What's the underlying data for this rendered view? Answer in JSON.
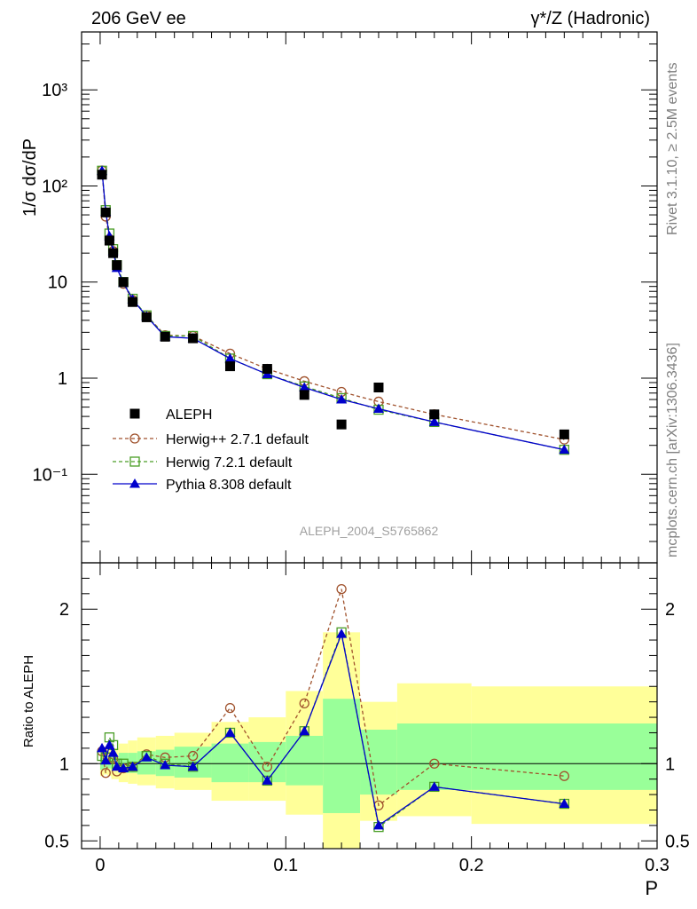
{
  "header": {
    "left": "206 GeV ee",
    "right": "γ*/Z (Hadronic)"
  },
  "side_labels": {
    "rivet": "Rivet 3.1.10, ≥ 2.5M events",
    "mcplots": "mcplots.cern.ch [arXiv:1306.3436]"
  },
  "analysis_label": "ALEPH_2004_S5765862",
  "colors": {
    "data": "#000000",
    "herwigpp": "#a0522d",
    "herwig7": "#4a9e26",
    "pythia": "#0000cc",
    "band_inner": "#99ff99",
    "band_outer": "#ffff99"
  },
  "chart_data": [
    {
      "type": "scatter",
      "panel": "main",
      "ylabel": "1/σ  dσ/dP",
      "yscale": "log",
      "xlim": [
        -0.01,
        0.3
      ],
      "ylim": [
        0.012,
        4000
      ],
      "y_tick_labels": [
        "10⁻¹",
        "1",
        "10",
        "10²",
        "10³"
      ],
      "legend_position": "lower-left",
      "x": [
        0.001,
        0.003,
        0.005,
        0.007,
        0.009,
        0.0125,
        0.0175,
        0.025,
        0.035,
        0.05,
        0.07,
        0.09,
        0.11,
        0.13,
        0.15,
        0.18,
        0.25
      ],
      "bin_edges": [
        0,
        0.002,
        0.004,
        0.006,
        0.008,
        0.01,
        0.015,
        0.02,
        0.03,
        0.04,
        0.06,
        0.08,
        0.1,
        0.12,
        0.14,
        0.16,
        0.2,
        0.3
      ],
      "series": [
        {
          "name": "ALEPH",
          "style": "data",
          "values": [
            131,
            53,
            27,
            20,
            15,
            10,
            6.2,
            4.3,
            2.7,
            2.6,
            1.33,
            1.25,
            0.67,
            0.33,
            0.8,
            0.42,
            0.26
          ]
        },
        {
          "name": "Herwig++ 2.7.1 default",
          "style": "herwigpp",
          "values": [
            145,
            48,
            28,
            21,
            15,
            9.6,
            6.5,
            4.5,
            2.8,
            2.75,
            1.8,
            1.25,
            0.93,
            0.72,
            0.57,
            0.42,
            0.23
          ]
        },
        {
          "name": "Herwig 7.2.1 default",
          "style": "herwig7",
          "values": [
            144,
            56,
            32,
            22,
            15,
            10,
            6.7,
            4.5,
            2.75,
            2.75,
            1.6,
            1.1,
            0.82,
            0.62,
            0.47,
            0.35,
            0.18
          ]
        },
        {
          "name": "Pythia 8.308 default",
          "style": "pythia",
          "values": [
            144,
            54,
            30,
            21,
            14,
            9.8,
            6.6,
            4.4,
            2.7,
            2.6,
            1.6,
            1.1,
            0.8,
            0.6,
            0.48,
            0.35,
            0.18
          ]
        }
      ]
    },
    {
      "type": "line",
      "panel": "ratio",
      "ylabel": "Ratio to ALEPH",
      "xlabel": "P",
      "xlim": [
        -0.01,
        0.3
      ],
      "ylim": [
        0.45,
        2.3
      ],
      "y_ticks": [
        0.5,
        1,
        2
      ],
      "y_tick_labels": [
        "0.5",
        "1",
        "2"
      ],
      "x_ticks": [
        0,
        0.1,
        0.2,
        0.3
      ],
      "x_tick_labels": [
        "0",
        "0.1",
        "0.2",
        "0.3"
      ],
      "reference_line": 1,
      "bands": {
        "bin_edges": [
          0,
          0.002,
          0.004,
          0.006,
          0.008,
          0.01,
          0.015,
          0.02,
          0.03,
          0.04,
          0.06,
          0.08,
          0.1,
          0.12,
          0.14,
          0.16,
          0.2,
          0.3
        ],
        "inner_low": [
          0.96,
          0.97,
          0.97,
          0.96,
          0.96,
          0.94,
          0.94,
          0.93,
          0.92,
          0.91,
          0.88,
          0.88,
          0.86,
          0.68,
          0.8,
          0.83,
          0.83
        ],
        "inner_high": [
          1.04,
          1.04,
          1.05,
          1.05,
          1.05,
          1.07,
          1.07,
          1.08,
          1.09,
          1.11,
          1.13,
          1.14,
          1.18,
          1.42,
          1.22,
          1.26,
          1.26
        ],
        "outer_low": [
          0.92,
          0.93,
          0.92,
          0.9,
          0.9,
          0.88,
          0.87,
          0.86,
          0.84,
          0.83,
          0.76,
          0.76,
          0.67,
          0.35,
          0.63,
          0.66,
          0.61
        ],
        "outer_high": [
          1.08,
          1.09,
          1.09,
          1.1,
          1.1,
          1.13,
          1.15,
          1.17,
          1.18,
          1.2,
          1.27,
          1.3,
          1.47,
          1.85,
          1.4,
          1.52,
          1.5
        ]
      },
      "series": [
        {
          "name": "Herwig++ 2.7.1 default",
          "style": "herwigpp",
          "values": [
            1.08,
            0.94,
            1.04,
            1.03,
            0.95,
            0.97,
            0.98,
            1.06,
            1.04,
            1.05,
            1.36,
            0.98,
            1.39,
            2.13,
            0.73,
            1.0,
            0.92
          ]
        },
        {
          "name": "Herwig 7.2.1 default",
          "style": "herwig7",
          "values": [
            1.05,
            1.04,
            1.17,
            1.12,
            1.0,
            1.0,
            0.98,
            1.05,
            1.0,
            0.98,
            1.2,
            0.89,
            1.21,
            1.85,
            0.59,
            0.85,
            0.74
          ]
        },
        {
          "name": "Pythia 8.308 default",
          "style": "pythia",
          "values": [
            1.1,
            1.02,
            1.12,
            1.07,
            0.98,
            0.97,
            0.98,
            1.04,
            0.99,
            0.98,
            1.2,
            0.89,
            1.21,
            1.84,
            0.6,
            0.85,
            0.74
          ]
        }
      ]
    }
  ]
}
